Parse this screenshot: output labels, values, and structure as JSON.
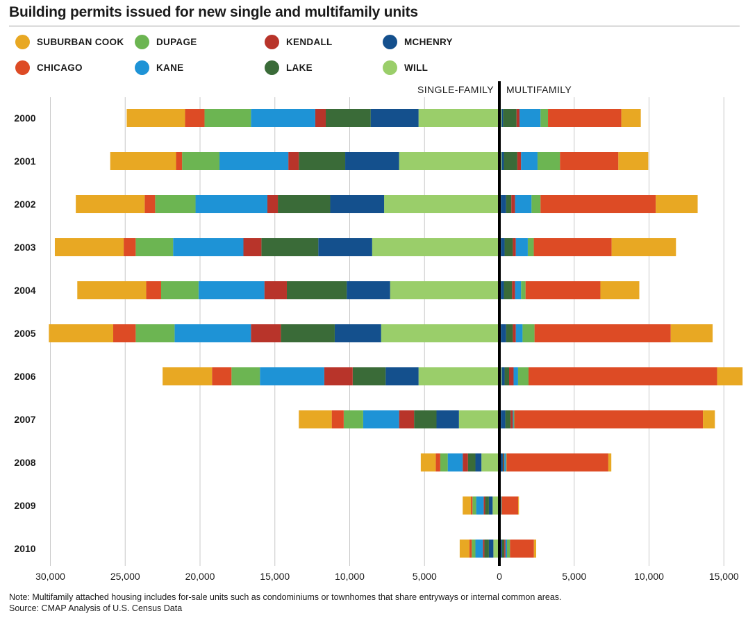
{
  "title": "Building permits issued for new single and multifamily units",
  "note": "Note: Multifamily attached housing includes for-sale units such as condominiums or townhomes that share entryways or internal common areas.",
  "source": "Source: CMAP Analysis of U.S. Census Data",
  "colors": {
    "suburban_cook": "#E8A823",
    "chicago": "#DD4B25",
    "dupage": "#6CB552",
    "kane": "#1E93D6",
    "kendall": "#B8342A",
    "lake": "#3A6B38",
    "mchenry": "#14508D",
    "will": "#9ACE6A"
  },
  "legend": [
    {
      "label": "SUBURBAN COOK",
      "color": "#E8A823"
    },
    {
      "label": "DUPAGE",
      "color": "#6CB552"
    },
    {
      "label": "KENDALL",
      "color": "#B8342A"
    },
    {
      "label": "MCHENRY",
      "color": "#14508D"
    },
    {
      "label": "CHICAGO",
      "color": "#DD4B25"
    },
    {
      "label": "KANE",
      "color": "#1E93D6"
    },
    {
      "label": "LAKE",
      "color": "#3A6B38"
    },
    {
      "label": "WILL",
      "color": "#9ACE6A"
    }
  ],
  "chart_data": {
    "type": "bar",
    "orientation": "horizontal",
    "stacked": true,
    "diverging": true,
    "left_label": "SINGLE-FAMILY",
    "right_label": "MULTIFAMILY",
    "xlim": [
      -30000,
      15000
    ],
    "xticks": [
      -30000,
      -25000,
      -20000,
      -15000,
      -10000,
      -5000,
      0,
      5000,
      10000,
      15000
    ],
    "xtick_labels": [
      "30,000",
      "25,000",
      "20,000",
      "15,000",
      "10,000",
      "5,000",
      "0",
      "5,000",
      "10,000",
      "15,000"
    ],
    "grid": true,
    "legend_position": "top",
    "categories": [
      "2000",
      "2001",
      "2002",
      "2003",
      "2004",
      "2005",
      "2006",
      "2007",
      "2008",
      "2009",
      "2010"
    ],
    "single_family": {
      "series": [
        {
          "name": "WILL",
          "values": [
            5400,
            6700,
            7700,
            8500,
            7300,
            7900,
            5400,
            2700,
            1200,
            450,
            400
          ]
        },
        {
          "name": "MCHENRY",
          "values": [
            3200,
            3600,
            3600,
            3600,
            2900,
            3100,
            2200,
            1500,
            400,
            250,
            300
          ]
        },
        {
          "name": "LAKE",
          "values": [
            3000,
            3100,
            3500,
            3800,
            4000,
            3600,
            2200,
            1500,
            500,
            250,
            300
          ]
        },
        {
          "name": "KENDALL",
          "values": [
            700,
            700,
            700,
            1200,
            1500,
            2000,
            1900,
            1000,
            350,
            100,
            100
          ]
        },
        {
          "name": "KANE",
          "values": [
            4300,
            4600,
            4800,
            4700,
            4400,
            5100,
            4300,
            2400,
            1000,
            500,
            500
          ]
        },
        {
          "name": "DUPAGE",
          "values": [
            3100,
            2500,
            2700,
            2500,
            2500,
            2600,
            1900,
            1300,
            500,
            250,
            250
          ]
        },
        {
          "name": "CHICAGO",
          "values": [
            1300,
            400,
            700,
            800,
            1000,
            1500,
            1300,
            800,
            300,
            100,
            150
          ]
        },
        {
          "name": "SUBURBAN COOK",
          "values": [
            3900,
            4400,
            4600,
            4600,
            4600,
            4300,
            3300,
            2200,
            1000,
            550,
            650
          ]
        }
      ]
    },
    "multifamily": {
      "series": [
        {
          "name": "WILL",
          "values": [
            150,
            150,
            100,
            100,
            100,
            100,
            150,
            100,
            80,
            20,
            80
          ]
        },
        {
          "name": "MCHENRY",
          "values": [
            100,
            150,
            350,
            250,
            200,
            350,
            200,
            300,
            150,
            40,
            100
          ]
        },
        {
          "name": "LAKE",
          "values": [
            900,
            900,
            350,
            550,
            550,
            450,
            300,
            350,
            50,
            30,
            150
          ]
        },
        {
          "name": "KENDALL",
          "values": [
            200,
            250,
            250,
            200,
            200,
            200,
            300,
            150,
            50,
            20,
            80
          ]
        },
        {
          "name": "KANE",
          "values": [
            1400,
            1100,
            1100,
            800,
            400,
            450,
            300,
            50,
            100,
            30,
            100
          ]
        },
        {
          "name": "DUPAGE",
          "values": [
            500,
            1500,
            600,
            400,
            300,
            800,
            700,
            50,
            50,
            20,
            200
          ]
        },
        {
          "name": "CHICAGO",
          "values": [
            4900,
            3900,
            7700,
            5200,
            5000,
            9100,
            12600,
            12600,
            6800,
            1100,
            1600
          ]
        },
        {
          "name": "SUBURBAN COOK",
          "values": [
            1300,
            2000,
            2800,
            4300,
            2600,
            2800,
            1700,
            800,
            200,
            50,
            150
          ]
        }
      ]
    }
  }
}
